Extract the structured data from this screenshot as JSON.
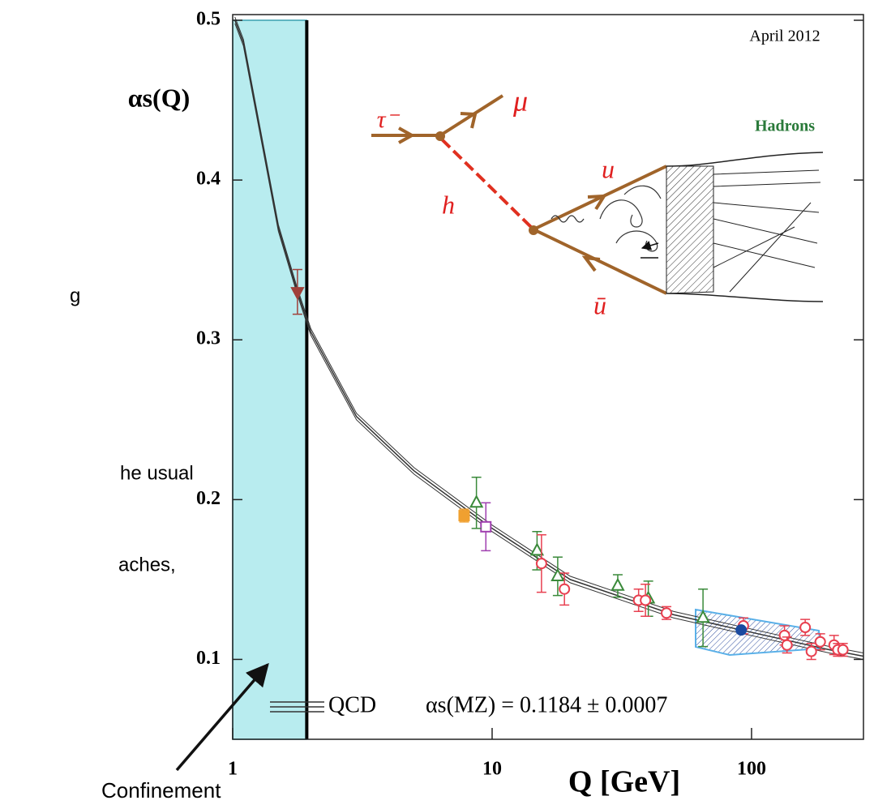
{
  "chart_data": {
    "type": "scatter",
    "x_label": "Q [GeV]",
    "y_label": "αs(Q)",
    "xlog": true,
    "xlim": [
      1,
      270
    ],
    "ylim": [
      0.05,
      0.5
    ],
    "xticks": [
      1,
      10,
      100
    ],
    "yticks": [
      0.1,
      0.2,
      0.3,
      0.4,
      0.5
    ],
    "shaded_region": {
      "x": [
        1,
        1.93
      ],
      "color": "#b8ecef"
    },
    "curve": {
      "color": "#333333",
      "x": [
        1.02,
        1.1,
        1.5,
        1.777,
        2,
        3,
        5,
        10,
        20,
        50,
        91.2,
        200,
        270
      ],
      "values": [
        0.5,
        0.486,
        0.37,
        0.33,
        0.305,
        0.252,
        0.218,
        0.182,
        0.15,
        0.128,
        0.1184,
        0.106,
        0.102
      ]
    },
    "series": [
      {
        "color": "#a0403a",
        "marker": "triangle-down",
        "x": [
          1.777
        ],
        "values": [
          0.33
        ],
        "errors": [
          0.014
        ]
      },
      {
        "color": "#f0a030",
        "marker": "square",
        "x": [
          7.8
        ],
        "values": [
          0.19
        ],
        "errors": [
          0.004
        ]
      },
      {
        "color": "#a040b0",
        "marker": "square-open",
        "x": [
          9.46
        ],
        "values": [
          0.183
        ],
        "errors": [
          0.015
        ]
      },
      {
        "color": "#3a8a3a",
        "marker": "triangle-open",
        "x": [
          8.7,
          14.9,
          17.9,
          30.5,
          40,
          65
        ],
        "values": [
          0.198,
          0.168,
          0.152,
          0.146,
          0.138,
          0.126
        ],
        "errors": [
          0.016,
          0.012,
          0.012,
          0.007,
          0.011,
          0.018
        ]
      },
      {
        "color": "#e84050",
        "marker": "circle-open",
        "x": [
          15.5,
          19,
          36.7,
          39,
          47,
          93,
          134,
          137,
          161,
          170,
          184,
          208,
          215,
          225
        ],
        "values": [
          0.16,
          0.144,
          0.137,
          0.137,
          0.129,
          0.121,
          0.115,
          0.109,
          0.12,
          0.105,
          0.111,
          0.109,
          0.106,
          0.106
        ],
        "errors": [
          0.018,
          0.01,
          0.007,
          0.01,
          0.004,
          0.005,
          0.006,
          0.005,
          0.005,
          0.005,
          0.005,
          0.006,
          0.004,
          0.004
        ]
      },
      {
        "color": "#1a4aa0",
        "marker": "circle",
        "x": [
          91.2
        ],
        "values": [
          0.1184
        ],
        "errors": [
          0.0007
        ]
      }
    ],
    "date_note": "April 2012",
    "legend_curve": "QCD",
    "result": "αs(MZ) = 0.1184 ± 0.0007",
    "diagram": {
      "tau": "τ⁻",
      "mu": "μ",
      "u": "u",
      "h": "h",
      "ubar": "ū",
      "hadrons": "Hadrons"
    },
    "arrow_label": "Confinement",
    "slide_fragments": [
      "g",
      "he usual",
      "aches,"
    ]
  }
}
